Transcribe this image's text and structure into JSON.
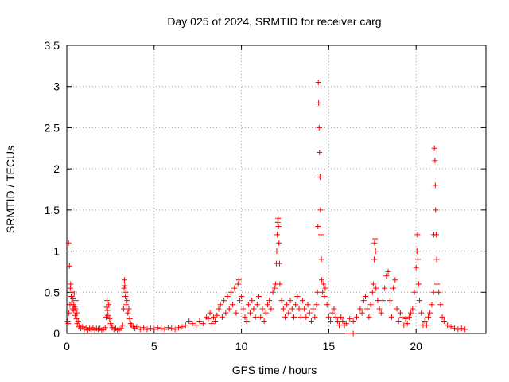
{
  "chart_data": {
    "type": "scatter",
    "title": "Day 025 of 2024, SRMTID for receiver carg",
    "xlabel": "GPS time / hours",
    "ylabel": "SRMTID / TECUs",
    "xlim": [
      0,
      24
    ],
    "ylim": [
      0,
      3.5
    ],
    "xticks": [
      0,
      5,
      10,
      15,
      20
    ],
    "yticks": [
      0,
      0.5,
      1,
      1.5,
      2,
      2.5,
      3,
      3.5
    ],
    "xtick_labels": [
      "0",
      "5",
      "10",
      "15",
      "20"
    ],
    "ytick_labels": [
      "0",
      "0.5",
      "1",
      "1.5",
      "2",
      "2.5",
      "3",
      "3.5"
    ],
    "grid": true,
    "marker": "+",
    "color": "#ff0000",
    "series": [
      {
        "name": "SRMTID",
        "points": [
          [
            0.05,
            0.15
          ],
          [
            0.08,
            0.12
          ],
          [
            0.1,
            1.1
          ],
          [
            0.12,
            0.25
          ],
          [
            0.15,
            0.82
          ],
          [
            0.18,
            0.35
          ],
          [
            0.2,
            0.55
          ],
          [
            0.22,
            0.6
          ],
          [
            0.25,
            0.45
          ],
          [
            0.28,
            0.38
          ],
          [
            0.3,
            0.5
          ],
          [
            0.32,
            0.3
          ],
          [
            0.35,
            0.42
          ],
          [
            0.38,
            0.28
          ],
          [
            0.4,
            0.35
          ],
          [
            0.42,
            0.48
          ],
          [
            0.45,
            0.32
          ],
          [
            0.48,
            0.22
          ],
          [
            0.5,
            0.3
          ],
          [
            0.52,
            0.4
          ],
          [
            0.55,
            0.18
          ],
          [
            0.58,
            0.25
          ],
          [
            0.6,
            0.12
          ],
          [
            0.65,
            0.15
          ],
          [
            0.7,
            0.08
          ],
          [
            0.75,
            0.1
          ],
          [
            0.8,
            0.06
          ],
          [
            0.9,
            0.08
          ],
          [
            1.0,
            0.05
          ],
          [
            1.1,
            0.07
          ],
          [
            1.2,
            0.04
          ],
          [
            1.3,
            0.06
          ],
          [
            1.4,
            0.05
          ],
          [
            1.5,
            0.07
          ],
          [
            1.6,
            0.04
          ],
          [
            1.7,
            0.06
          ],
          [
            1.8,
            0.05
          ],
          [
            1.9,
            0.06
          ],
          [
            2.0,
            0.04
          ],
          [
            2.1,
            0.05
          ],
          [
            2.2,
            0.07
          ],
          [
            2.25,
            0.2
          ],
          [
            2.28,
            0.32
          ],
          [
            2.3,
            0.4
          ],
          [
            2.33,
            0.28
          ],
          [
            2.36,
            0.22
          ],
          [
            2.4,
            0.35
          ],
          [
            2.45,
            0.18
          ],
          [
            2.5,
            0.12
          ],
          [
            2.55,
            0.1
          ],
          [
            2.6,
            0.07
          ],
          [
            2.7,
            0.05
          ],
          [
            2.8,
            0.06
          ],
          [
            2.9,
            0.04
          ],
          [
            3.0,
            0.05
          ],
          [
            3.1,
            0.06
          ],
          [
            3.2,
            0.1
          ],
          [
            3.25,
            0.3
          ],
          [
            3.28,
            0.55
          ],
          [
            3.3,
            0.65
          ],
          [
            3.32,
            0.58
          ],
          [
            3.35,
            0.45
          ],
          [
            3.38,
            0.5
          ],
          [
            3.4,
            0.35
          ],
          [
            3.45,
            0.4
          ],
          [
            3.5,
            0.25
          ],
          [
            3.55,
            0.3
          ],
          [
            3.6,
            0.18
          ],
          [
            3.65,
            0.12
          ],
          [
            3.7,
            0.1
          ],
          [
            3.8,
            0.08
          ],
          [
            3.9,
            0.06
          ],
          [
            4.0,
            0.08
          ],
          [
            4.2,
            0.05
          ],
          [
            4.4,
            0.07
          ],
          [
            4.6,
            0.05
          ],
          [
            4.8,
            0.06
          ],
          [
            5.0,
            0.05
          ],
          [
            5.2,
            0.07
          ],
          [
            5.4,
            0.06
          ],
          [
            5.6,
            0.05
          ],
          [
            5.8,
            0.07
          ],
          [
            6.0,
            0.06
          ],
          [
            6.2,
            0.05
          ],
          [
            6.4,
            0.07
          ],
          [
            6.6,
            0.08
          ],
          [
            6.8,
            0.1
          ],
          [
            7.0,
            0.15
          ],
          [
            7.2,
            0.12
          ],
          [
            7.4,
            0.1
          ],
          [
            7.6,
            0.15
          ],
          [
            7.8,
            0.12
          ],
          [
            8.0,
            0.2
          ],
          [
            8.1,
            0.18
          ],
          [
            8.2,
            0.25
          ],
          [
            8.3,
            0.12
          ],
          [
            8.4,
            0.2
          ],
          [
            8.5,
            0.15
          ],
          [
            8.6,
            0.22
          ],
          [
            8.7,
            0.3
          ],
          [
            8.8,
            0.35
          ],
          [
            8.9,
            0.2
          ],
          [
            9.0,
            0.4
          ],
          [
            9.1,
            0.25
          ],
          [
            9.2,
            0.45
          ],
          [
            9.3,
            0.3
          ],
          [
            9.4,
            0.5
          ],
          [
            9.5,
            0.35
          ],
          [
            9.6,
            0.55
          ],
          [
            9.7,
            0.25
          ],
          [
            9.8,
            0.6
          ],
          [
            9.85,
            0.65
          ],
          [
            9.9,
            0.4
          ],
          [
            10.0,
            0.45
          ],
          [
            10.1,
            0.3
          ],
          [
            10.2,
            0.2
          ],
          [
            10.3,
            0.15
          ],
          [
            10.4,
            0.35
          ],
          [
            10.5,
            0.25
          ],
          [
            10.6,
            0.4
          ],
          [
            10.7,
            0.3
          ],
          [
            10.8,
            0.2
          ],
          [
            10.9,
            0.35
          ],
          [
            11.0,
            0.45
          ],
          [
            11.1,
            0.2
          ],
          [
            11.2,
            0.3
          ],
          [
            11.3,
            0.15
          ],
          [
            11.4,
            0.25
          ],
          [
            11.5,
            0.35
          ],
          [
            11.6,
            0.4
          ],
          [
            11.7,
            0.3
          ],
          [
            11.8,
            0.5
          ],
          [
            11.9,
            0.55
          ],
          [
            11.95,
            0.6
          ],
          [
            12.0,
            0.85
          ],
          [
            12.02,
            1.0
          ],
          [
            12.05,
            1.2
          ],
          [
            12.08,
            1.35
          ],
          [
            12.1,
            1.4
          ],
          [
            12.12,
            1.3
          ],
          [
            12.15,
            1.1
          ],
          [
            12.18,
            0.85
          ],
          [
            12.2,
            0.6
          ],
          [
            12.3,
            0.4
          ],
          [
            12.4,
            0.3
          ],
          [
            12.5,
            0.2
          ],
          [
            12.6,
            0.35
          ],
          [
            12.7,
            0.25
          ],
          [
            12.8,
            0.4
          ],
          [
            12.9,
            0.3
          ],
          [
            13.0,
            0.2
          ],
          [
            13.1,
            0.35
          ],
          [
            13.2,
            0.45
          ],
          [
            13.3,
            0.3
          ],
          [
            13.4,
            0.2
          ],
          [
            13.5,
            0.4
          ],
          [
            13.6,
            0.3
          ],
          [
            13.7,
            0.2
          ],
          [
            13.8,
            0.35
          ],
          [
            13.9,
            0.25
          ],
          [
            14.0,
            0.15
          ],
          [
            14.1,
            0.3
          ],
          [
            14.2,
            0.2
          ],
          [
            14.3,
            0.35
          ],
          [
            14.35,
            0.5
          ],
          [
            14.38,
            1.3
          ],
          [
            14.4,
            3.05
          ],
          [
            14.42,
            2.8
          ],
          [
            14.45,
            2.5
          ],
          [
            14.47,
            2.2
          ],
          [
            14.5,
            1.9
          ],
          [
            14.52,
            1.5
          ],
          [
            14.55,
            1.2
          ],
          [
            14.58,
            0.9
          ],
          [
            14.6,
            0.65
          ],
          [
            14.65,
            0.5
          ],
          [
            14.7,
            0.6
          ],
          [
            14.75,
            0.45
          ],
          [
            14.8,
            0.55
          ],
          [
            14.9,
            0.35
          ],
          [
            15.0,
            0.2
          ],
          [
            15.1,
            0.15
          ],
          [
            15.2,
            0.25
          ],
          [
            15.3,
            0.3
          ],
          [
            15.4,
            0.2
          ],
          [
            15.5,
            0.15
          ],
          [
            15.6,
            0.1
          ],
          [
            15.7,
            0.2
          ],
          [
            15.8,
            0.15
          ],
          [
            15.9,
            0.1
          ],
          [
            16.0,
            0.12
          ],
          [
            16.2,
            0.18
          ],
          [
            16.4,
            0.15
          ],
          [
            16.6,
            0.2
          ],
          [
            16.8,
            0.3
          ],
          [
            16.9,
            0.25
          ],
          [
            17.0,
            0.4
          ],
          [
            17.1,
            0.45
          ],
          [
            17.2,
            0.3
          ],
          [
            17.3,
            0.2
          ],
          [
            17.4,
            0.35
          ],
          [
            17.5,
            0.5
          ],
          [
            17.55,
            0.6
          ],
          [
            17.6,
            0.9
          ],
          [
            17.62,
            1.1
          ],
          [
            17.65,
            1.15
          ],
          [
            17.68,
            1.0
          ],
          [
            17.7,
            0.55
          ],
          [
            17.8,
            0.4
          ],
          [
            17.9,
            0.3
          ],
          [
            18.0,
            0.25
          ],
          [
            18.1,
            0.4
          ],
          [
            18.2,
            0.55
          ],
          [
            18.3,
            0.7
          ],
          [
            18.4,
            0.75
          ],
          [
            18.5,
            0.4
          ],
          [
            18.6,
            0.2
          ],
          [
            18.7,
            0.55
          ],
          [
            18.8,
            0.65
          ],
          [
            18.9,
            0.3
          ],
          [
            19.0,
            0.15
          ],
          [
            19.1,
            0.25
          ],
          [
            19.2,
            0.2
          ],
          [
            19.3,
            0.1
          ],
          [
            19.4,
            0.18
          ],
          [
            19.5,
            0.12
          ],
          [
            19.6,
            0.2
          ],
          [
            19.7,
            0.25
          ],
          [
            19.8,
            0.3
          ],
          [
            19.9,
            0.5
          ],
          [
            20.0,
            0.8
          ],
          [
            20.05,
            1.0
          ],
          [
            20.08,
            1.2
          ],
          [
            20.1,
            0.9
          ],
          [
            20.15,
            0.6
          ],
          [
            20.2,
            0.4
          ],
          [
            20.3,
            0.25
          ],
          [
            20.4,
            0.1
          ],
          [
            20.5,
            0.15
          ],
          [
            20.6,
            0.1
          ],
          [
            20.7,
            0.2
          ],
          [
            20.8,
            0.25
          ],
          [
            20.9,
            0.35
          ],
          [
            21.0,
            0.5
          ],
          [
            21.02,
            1.2
          ],
          [
            21.05,
            2.25
          ],
          [
            21.08,
            2.1
          ],
          [
            21.1,
            1.8
          ],
          [
            21.12,
            1.5
          ],
          [
            21.15,
            1.2
          ],
          [
            21.18,
            0.9
          ],
          [
            21.2,
            0.6
          ],
          [
            21.3,
            0.5
          ],
          [
            21.4,
            0.35
          ],
          [
            21.5,
            0.2
          ],
          [
            21.6,
            0.15
          ],
          [
            21.8,
            0.1
          ],
          [
            22.0,
            0.08
          ],
          [
            22.2,
            0.06
          ],
          [
            22.4,
            0.05
          ],
          [
            22.6,
            0.06
          ],
          [
            22.8,
            0.05
          ],
          [
            16.1,
            0.0
          ],
          [
            16.4,
            0.0
          ]
        ]
      }
    ]
  }
}
